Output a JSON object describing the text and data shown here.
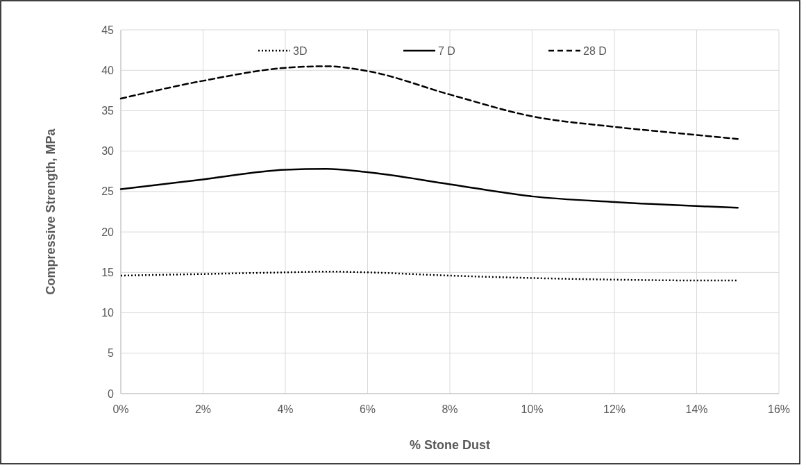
{
  "chart_data": {
    "type": "line",
    "xlabel": "% Stone Dust",
    "ylabel": "Compressive Strength, MPa",
    "xlim": [
      0,
      16
    ],
    "xticks": [
      {
        "value": 0,
        "label": "0%"
      },
      {
        "value": 2,
        "label": "2%"
      },
      {
        "value": 4,
        "label": "4%"
      },
      {
        "value": 6,
        "label": "6%"
      },
      {
        "value": 8,
        "label": "8%"
      },
      {
        "value": 10,
        "label": "10%"
      },
      {
        "value": 12,
        "label": "12%"
      },
      {
        "value": 14,
        "label": "14%"
      },
      {
        "value": 16,
        "label": "16%"
      }
    ],
    "ylim": [
      0,
      45
    ],
    "yticks": [
      0,
      5,
      10,
      15,
      20,
      25,
      30,
      35,
      40,
      45
    ],
    "grid": true,
    "legend": "top",
    "marker": "none",
    "series": [
      {
        "name": "3D",
        "color": "#000000",
        "line_style": "dotted",
        "x": [
          0,
          2,
          4,
          5,
          6,
          8,
          10,
          12,
          14,
          15
        ],
        "values": [
          14.6,
          14.8,
          15.0,
          15.1,
          15.0,
          14.6,
          14.3,
          14.1,
          14.0,
          14.0
        ]
      },
      {
        "name": "7 D",
        "color": "#000000",
        "line_style": "solid",
        "x": [
          0,
          2,
          4,
          5,
          6,
          8,
          10,
          12,
          14,
          15
        ],
        "values": [
          25.3,
          26.5,
          27.7,
          27.8,
          27.4,
          25.9,
          24.4,
          23.7,
          23.2,
          23.0
        ]
      },
      {
        "name": "28 D",
        "color": "#000000",
        "line_style": "dashed",
        "x": [
          0,
          2,
          4,
          5,
          6,
          8,
          10,
          12,
          14,
          15
        ],
        "values": [
          36.5,
          38.7,
          40.3,
          40.5,
          39.9,
          37.0,
          34.3,
          33.0,
          32.0,
          31.5
        ]
      }
    ]
  }
}
